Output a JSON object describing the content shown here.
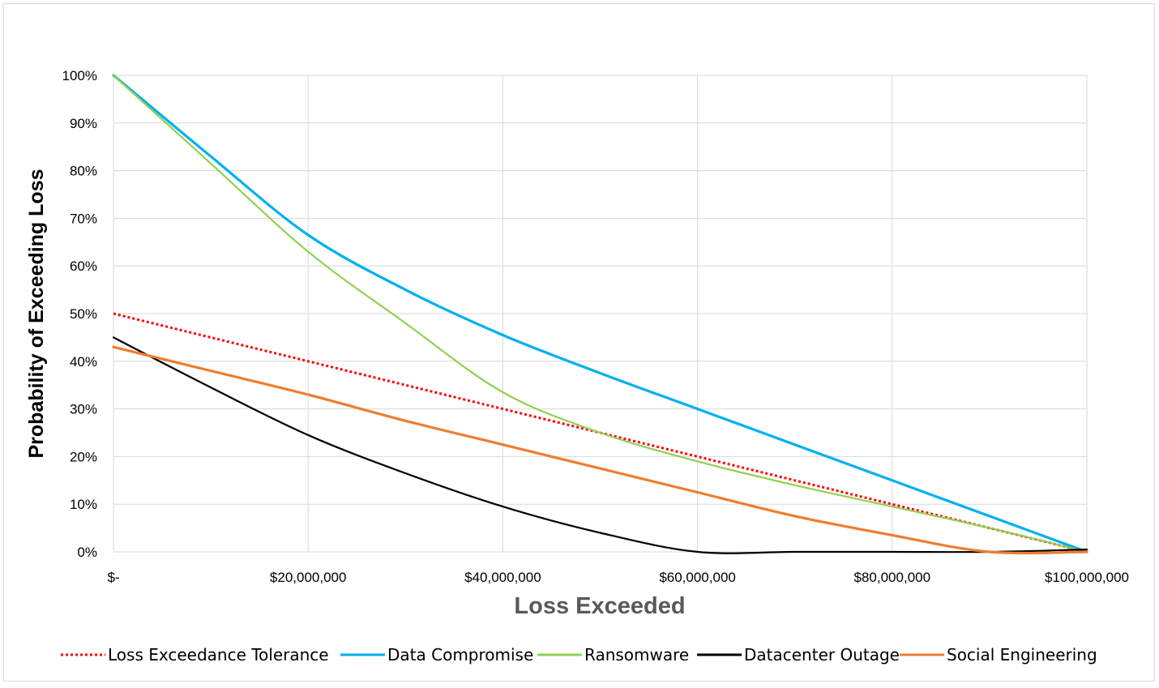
{
  "chart_data": {
    "type": "line",
    "title": "",
    "xlabel": "Loss Exceeded",
    "ylabel": "Probability of Exceeding Loss",
    "xlim": [
      0,
      100000000
    ],
    "ylim": [
      0,
      1
    ],
    "x_ticks": [
      {
        "value": 0,
        "label": "$-"
      },
      {
        "value": 20000000,
        "label": "$20,000,000"
      },
      {
        "value": 40000000,
        "label": "$40,000,000"
      },
      {
        "value": 60000000,
        "label": "$60,000,000"
      },
      {
        "value": 80000000,
        "label": "$80,000,000"
      },
      {
        "value": 100000000,
        "label": "$100,000,000"
      }
    ],
    "y_ticks": [
      {
        "value": 0,
        "label": "0%"
      },
      {
        "value": 0.1,
        "label": "10%"
      },
      {
        "value": 0.2,
        "label": "20%"
      },
      {
        "value": 0.3,
        "label": "30%"
      },
      {
        "value": 0.4,
        "label": "40%"
      },
      {
        "value": 0.5,
        "label": "50%"
      },
      {
        "value": 0.6,
        "label": "60%"
      },
      {
        "value": 0.7,
        "label": "70%"
      },
      {
        "value": 0.8,
        "label": "80%"
      },
      {
        "value": 0.9,
        "label": "90%"
      },
      {
        "value": 1.0,
        "label": "100%"
      }
    ],
    "grid": true,
    "legend_position": "bottom",
    "series": [
      {
        "name": "Loss Exceedance Tolerance",
        "color": "#ff0000",
        "style": "dotted",
        "x": [
          0,
          20000000,
          40000000,
          60000000,
          80000000,
          100000000
        ],
        "y": [
          0.5,
          0.4,
          0.3,
          0.2,
          0.1,
          0.0
        ]
      },
      {
        "name": "Data Compromise",
        "color": "#00b0f0",
        "style": "solid",
        "x": [
          0,
          10000000,
          20000000,
          30000000,
          40000000,
          50000000,
          60000000,
          70000000,
          80000000,
          90000000,
          100000000
        ],
        "y": [
          1.0,
          0.83,
          0.665,
          0.55,
          0.455,
          0.375,
          0.3,
          0.225,
          0.15,
          0.075,
          0.0
        ]
      },
      {
        "name": "Ransomware",
        "color": "#92d050",
        "style": "solid",
        "x": [
          0,
          10000000,
          20000000,
          30000000,
          40000000,
          50000000,
          60000000,
          70000000,
          80000000,
          90000000,
          100000000
        ],
        "y": [
          1.0,
          0.815,
          0.63,
          0.48,
          0.335,
          0.25,
          0.19,
          0.14,
          0.095,
          0.05,
          0.0
        ]
      },
      {
        "name": "Datacenter Outage",
        "color": "#000000",
        "style": "solid",
        "x": [
          0,
          10000000,
          20000000,
          30000000,
          40000000,
          50000000,
          60000000,
          70000000,
          80000000,
          90000000,
          100000000
        ],
        "y": [
          0.45,
          0.345,
          0.245,
          0.165,
          0.095,
          0.04,
          0.0,
          0.0,
          0.0,
          0.0,
          0.005
        ]
      },
      {
        "name": "Social Engineering",
        "color": "#ed7d31",
        "style": "solid",
        "x": [
          0,
          10000000,
          20000000,
          30000000,
          40000000,
          50000000,
          60000000,
          70000000,
          80000000,
          90000000,
          100000000
        ],
        "y": [
          0.43,
          0.38,
          0.33,
          0.275,
          0.225,
          0.175,
          0.125,
          0.075,
          0.035,
          0.0,
          0.0
        ]
      }
    ]
  }
}
